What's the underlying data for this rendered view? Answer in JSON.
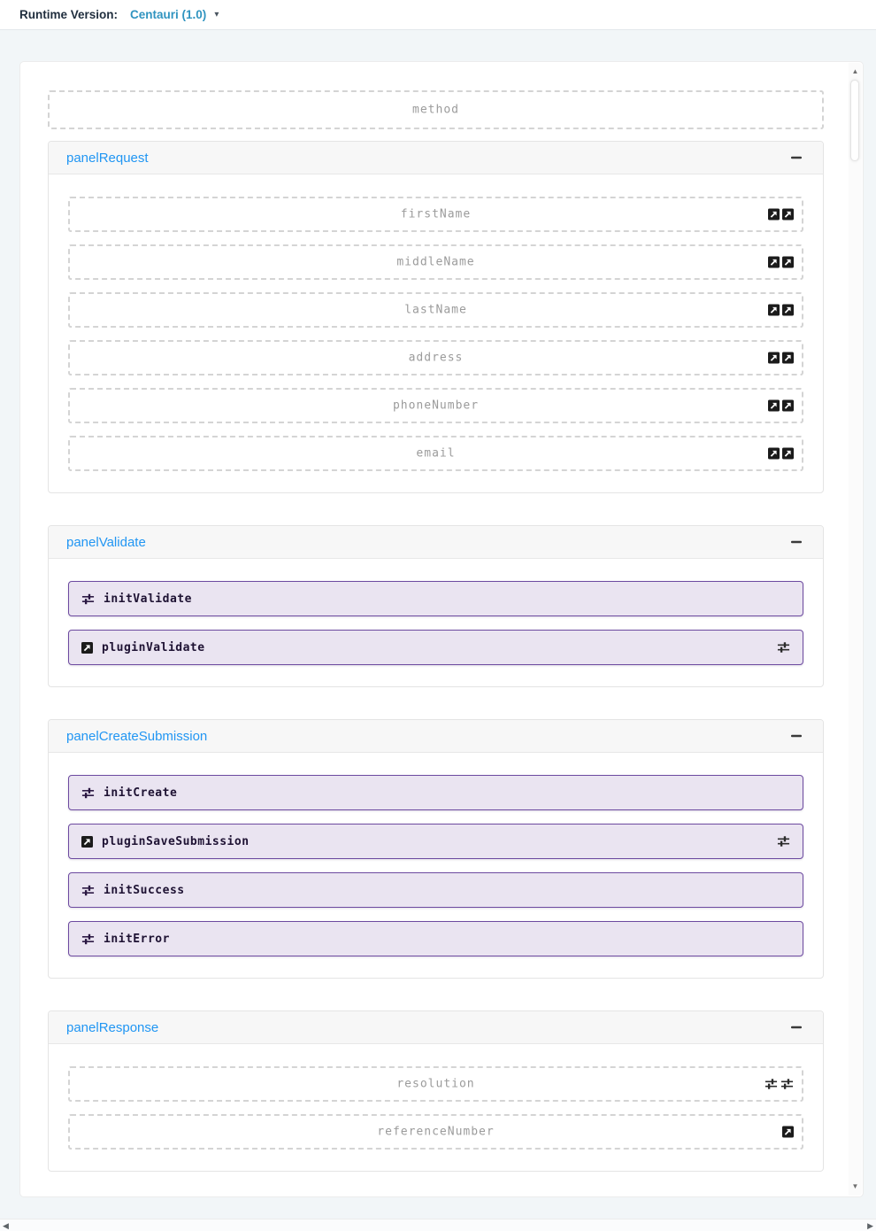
{
  "topbar": {
    "label": "Runtime Version:",
    "dropdown": {
      "value": "Centauri (1.0)",
      "caret_icon": "caret-down"
    }
  },
  "method_field": {
    "label": "method"
  },
  "panels": [
    {
      "title": "panelRequest",
      "collapse_icon": "minus",
      "rows": [
        {
          "style": "dashed",
          "label": "firstName",
          "left_icon": null,
          "right_icons": [
            "launch",
            "launch"
          ]
        },
        {
          "style": "dashed",
          "label": "middleName",
          "left_icon": null,
          "right_icons": [
            "launch",
            "launch"
          ]
        },
        {
          "style": "dashed",
          "label": "lastName",
          "left_icon": null,
          "right_icons": [
            "launch",
            "launch"
          ]
        },
        {
          "style": "dashed",
          "label": "address",
          "left_icon": null,
          "right_icons": [
            "launch",
            "launch"
          ]
        },
        {
          "style": "dashed",
          "label": "phoneNumber",
          "left_icon": null,
          "right_icons": [
            "launch",
            "launch"
          ]
        },
        {
          "style": "dashed",
          "label": "email",
          "left_icon": null,
          "right_icons": [
            "launch",
            "launch"
          ]
        }
      ]
    },
    {
      "title": "panelValidate",
      "collapse_icon": "minus",
      "rows": [
        {
          "style": "action",
          "label": "initValidate",
          "left_icon": "sliders",
          "right_icons": []
        },
        {
          "style": "action",
          "label": "pluginValidate",
          "left_icon": "launch",
          "right_icons": [
            "sliders"
          ]
        }
      ]
    },
    {
      "title": "panelCreateSubmission",
      "collapse_icon": "minus",
      "rows": [
        {
          "style": "action",
          "label": "initCreate",
          "left_icon": "sliders",
          "right_icons": []
        },
        {
          "style": "action",
          "label": "pluginSaveSubmission",
          "left_icon": "launch",
          "right_icons": [
            "sliders"
          ]
        },
        {
          "style": "action",
          "label": "initSuccess",
          "left_icon": "sliders",
          "right_icons": []
        },
        {
          "style": "action",
          "label": "initError",
          "left_icon": "sliders",
          "right_icons": []
        }
      ]
    },
    {
      "title": "panelResponse",
      "collapse_icon": "minus",
      "rows": [
        {
          "style": "dashed",
          "label": "resolution",
          "left_icon": null,
          "right_icons": [
            "sliders",
            "sliders"
          ]
        },
        {
          "style": "dashed",
          "label": "referenceNumber",
          "left_icon": null,
          "right_icons": [
            "launch"
          ]
        }
      ]
    }
  ],
  "colors": {
    "panel_title": "#2196f3",
    "runtime_value": "#3094c0",
    "action_bg": "#eae4f1",
    "action_border": "#6d4aa0",
    "action_text": "#1e1233",
    "dash_border": "#d4d4d4",
    "field_label": "#9b9b9b",
    "header_bg": "#f7f7f7",
    "icon_dark": "#1b1b1b"
  }
}
